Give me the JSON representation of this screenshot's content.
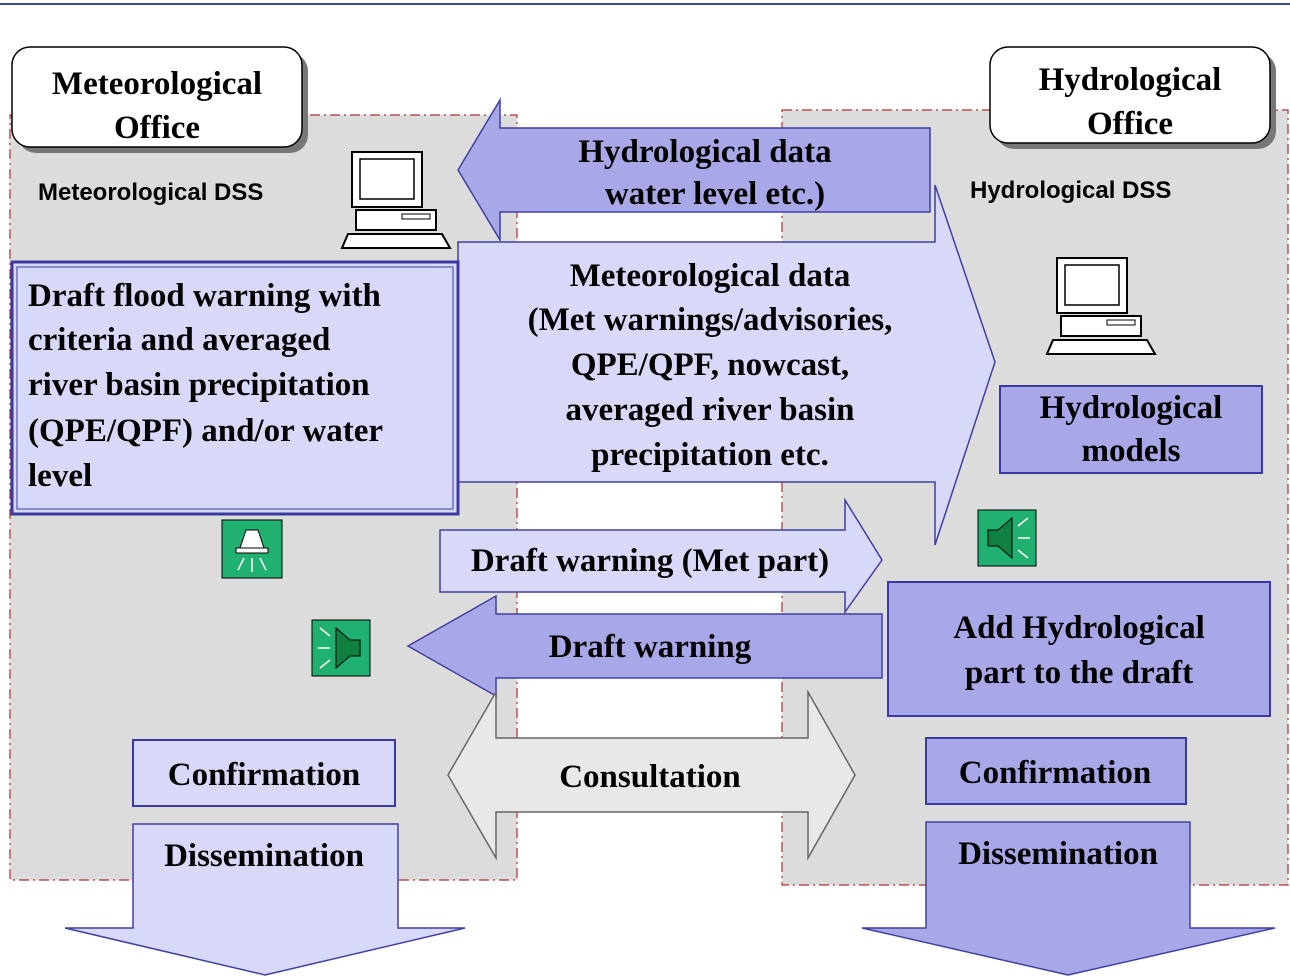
{
  "met": {
    "title": [
      "Meteorological",
      "Office"
    ],
    "dss": "Meteorological DSS",
    "draft": [
      "Draft flood warning with",
      "criteria and averaged",
      "river basin precipitation",
      "(QPE/QPF) and/or  water",
      "level"
    ],
    "confirmation": "Confirmation",
    "dissemination": "Dissemination"
  },
  "hydro": {
    "title": [
      "Hydrological",
      "Office"
    ],
    "dss": "Hydrological DSS",
    "models": [
      "Hydrological",
      "models"
    ],
    "add_part": [
      "Add Hydrological",
      "part to the draft"
    ],
    "confirmation": "Confirmation",
    "dissemination": "Dissemination"
  },
  "arrows": {
    "hydro_data": [
      "Hydrological data",
      "water level etc.)"
    ],
    "met_data": [
      "Meteorological data",
      "(Met warnings/advisories,",
      "QPE/QPF, nowcast,",
      "averaged river basin",
      "precipitation etc."
    ],
    "draft_met_part": "Draft warning (Met part)",
    "draft_warning": "Draft warning",
    "consultation": "Consultation"
  }
}
